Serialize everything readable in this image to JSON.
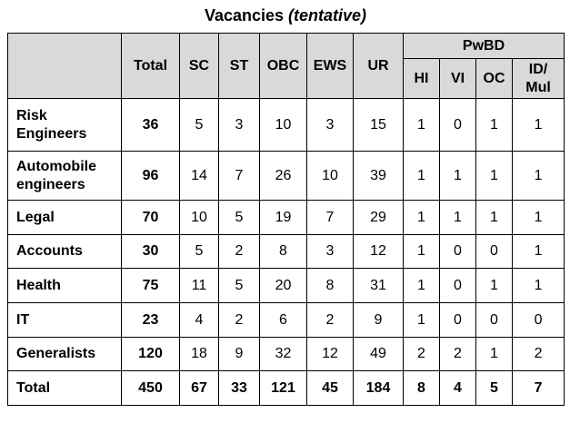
{
  "title": {
    "main": "Vacancies",
    "qualifier": "(tentative)"
  },
  "table": {
    "corner_label": "",
    "columns": [
      "Total",
      "SC",
      "ST",
      "OBC",
      "EWS",
      "UR"
    ],
    "pwbd": {
      "label": "PwBD",
      "subcolumns": [
        "HI",
        "VI",
        "OC",
        "ID/ Mul"
      ]
    },
    "rows": [
      {
        "label": "Risk Engineers",
        "cells": [
          "36",
          "5",
          "3",
          "10",
          "3",
          "15",
          "1",
          "0",
          "1",
          "1"
        ]
      },
      {
        "label": "Automobile engineers",
        "cells": [
          "96",
          "14",
          "7",
          "26",
          "10",
          "39",
          "1",
          "1",
          "1",
          "1"
        ]
      },
      {
        "label": "Legal",
        "cells": [
          "70",
          "10",
          "5",
          "19",
          "7",
          "29",
          "1",
          "1",
          "1",
          "1"
        ]
      },
      {
        "label": "Accounts",
        "cells": [
          "30",
          "5",
          "2",
          "8",
          "3",
          "12",
          "1",
          "0",
          "0",
          "1"
        ]
      },
      {
        "label": "Health",
        "cells": [
          "75",
          "11",
          "5",
          "20",
          "8",
          "31",
          "1",
          "0",
          "1",
          "1"
        ]
      },
      {
        "label": "IT",
        "cells": [
          "23",
          "4",
          "2",
          "6",
          "2",
          "9",
          "1",
          "0",
          "0",
          "0"
        ]
      },
      {
        "label": "Generalists",
        "cells": [
          "120",
          "18",
          "9",
          "32",
          "12",
          "49",
          "2",
          "2",
          "1",
          "2"
        ]
      },
      {
        "label": "Total",
        "cells": [
          "450",
          "67",
          "33",
          "121",
          "45",
          "184",
          "8",
          "4",
          "5",
          "7"
        ]
      }
    ]
  },
  "colors": {
    "page_bg": "#ffffff",
    "header_bg": "#d9d9d9",
    "border": "#000000",
    "text": "#000000"
  }
}
